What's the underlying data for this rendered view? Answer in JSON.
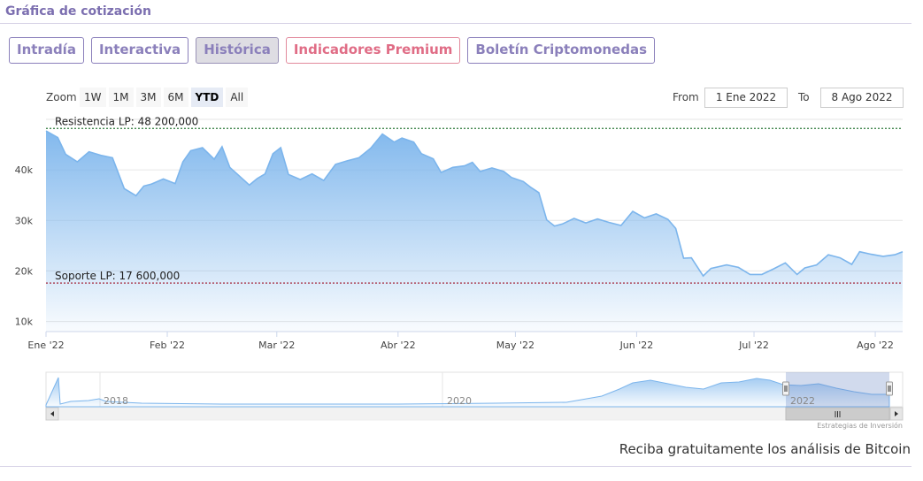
{
  "header": {
    "title": "Gráfica de cotización"
  },
  "tabs": [
    {
      "label": "Intradía",
      "active": false
    },
    {
      "label": "Interactiva",
      "active": false
    },
    {
      "label": "Histórica",
      "active": true
    },
    {
      "label": "Indicadores Premium",
      "active": false
    },
    {
      "label": "Boletín Criptomonedas",
      "active": false
    }
  ],
  "toolbar": {
    "zoom_label": "Zoom",
    "zoom_buttons": [
      "1W",
      "1M",
      "3M",
      "6M",
      "YTD",
      "All"
    ],
    "zoom_active": "YTD",
    "from_label": "From",
    "from_value": "1 Ene 2022",
    "to_label": "To",
    "to_value": "8 Ago 2022"
  },
  "chart_data": {
    "type": "area",
    "x_tick_labels": [
      "Ene '22",
      "Feb '22",
      "Mar '22",
      "Abr '22",
      "May '22",
      "Jun '22",
      "Jul '22",
      "Ago '22"
    ],
    "y_tick_labels": [
      "10k",
      "20k",
      "30k",
      "40k"
    ],
    "ylim": [
      8000,
      50000
    ],
    "xlim": [
      "2022-01-01",
      "2022-08-08"
    ],
    "grid": true,
    "series_color": "#7cb5ec",
    "series": [
      {
        "points": [
          [
            "2022-01-01",
            47700
          ],
          [
            "2022-01-04",
            46400
          ],
          [
            "2022-01-06",
            43100
          ],
          [
            "2022-01-09",
            41600
          ],
          [
            "2022-01-12",
            43600
          ],
          [
            "2022-01-15",
            42900
          ],
          [
            "2022-01-18",
            42400
          ],
          [
            "2022-01-21",
            36300
          ],
          [
            "2022-01-24",
            34900
          ],
          [
            "2022-01-26",
            36800
          ],
          [
            "2022-01-28",
            37200
          ],
          [
            "2022-01-31",
            38200
          ],
          [
            "2022-02-03",
            37300
          ],
          [
            "2022-02-05",
            41600
          ],
          [
            "2022-02-07",
            43800
          ],
          [
            "2022-02-10",
            44400
          ],
          [
            "2022-02-13",
            42100
          ],
          [
            "2022-02-15",
            44600
          ],
          [
            "2022-02-17",
            40500
          ],
          [
            "2022-02-20",
            38400
          ],
          [
            "2022-02-22",
            37000
          ],
          [
            "2022-02-24",
            38300
          ],
          [
            "2022-02-26",
            39200
          ],
          [
            "2022-02-28",
            43200
          ],
          [
            "2022-03-02",
            44400
          ],
          [
            "2022-03-04",
            39100
          ],
          [
            "2022-03-07",
            38100
          ],
          [
            "2022-03-10",
            39200
          ],
          [
            "2022-03-13",
            37900
          ],
          [
            "2022-03-16",
            41100
          ],
          [
            "2022-03-19",
            41800
          ],
          [
            "2022-03-22",
            42400
          ],
          [
            "2022-03-25",
            44300
          ],
          [
            "2022-03-28",
            47100
          ],
          [
            "2022-03-31",
            45500
          ],
          [
            "2022-04-02",
            46300
          ],
          [
            "2022-04-05",
            45500
          ],
          [
            "2022-04-07",
            43200
          ],
          [
            "2022-04-10",
            42200
          ],
          [
            "2022-04-12",
            39500
          ],
          [
            "2022-04-15",
            40500
          ],
          [
            "2022-04-18",
            40800
          ],
          [
            "2022-04-20",
            41500
          ],
          [
            "2022-04-22",
            39700
          ],
          [
            "2022-04-25",
            40400
          ],
          [
            "2022-04-28",
            39700
          ],
          [
            "2022-04-30",
            38500
          ],
          [
            "2022-05-03",
            37700
          ],
          [
            "2022-05-05",
            36500
          ],
          [
            "2022-05-07",
            35500
          ],
          [
            "2022-05-09",
            30100
          ],
          [
            "2022-05-11",
            28900
          ],
          [
            "2022-05-13",
            29300
          ],
          [
            "2022-05-16",
            30400
          ],
          [
            "2022-05-19",
            29500
          ],
          [
            "2022-05-22",
            30300
          ],
          [
            "2022-05-25",
            29600
          ],
          [
            "2022-05-28",
            29000
          ],
          [
            "2022-05-31",
            31800
          ],
          [
            "2022-06-03",
            30500
          ],
          [
            "2022-06-06",
            31300
          ],
          [
            "2022-06-09",
            30200
          ],
          [
            "2022-06-11",
            28400
          ],
          [
            "2022-06-13",
            22500
          ],
          [
            "2022-06-15",
            22600
          ],
          [
            "2022-06-18",
            19000
          ],
          [
            "2022-06-20",
            20500
          ],
          [
            "2022-06-24",
            21200
          ],
          [
            "2022-06-27",
            20700
          ],
          [
            "2022-06-30",
            19300
          ],
          [
            "2022-07-03",
            19300
          ],
          [
            "2022-07-06",
            20400
          ],
          [
            "2022-07-09",
            21600
          ],
          [
            "2022-07-12",
            19300
          ],
          [
            "2022-07-14",
            20600
          ],
          [
            "2022-07-17",
            21200
          ],
          [
            "2022-07-20",
            23200
          ],
          [
            "2022-07-23",
            22600
          ],
          [
            "2022-07-26",
            21300
          ],
          [
            "2022-07-28",
            23800
          ],
          [
            "2022-07-31",
            23300
          ],
          [
            "2022-08-03",
            22900
          ],
          [
            "2022-08-06",
            23200
          ],
          [
            "2022-08-08",
            23800
          ]
        ]
      }
    ],
    "plot_lines": [
      {
        "label": "Resistencia LP: 48 200,000",
        "value": 48200,
        "color": "#2d7a3a"
      },
      {
        "label": "Soporte LP: 17 600,000",
        "value": 17600,
        "color": "#a3263a"
      }
    ]
  },
  "navigator": {
    "year_labels": [
      "2018",
      "2020",
      "2022"
    ]
  },
  "credits": "Estrategias de Inversión",
  "footer": {
    "text": "Reciba gratuitamente los análisis de Bitcoin"
  }
}
